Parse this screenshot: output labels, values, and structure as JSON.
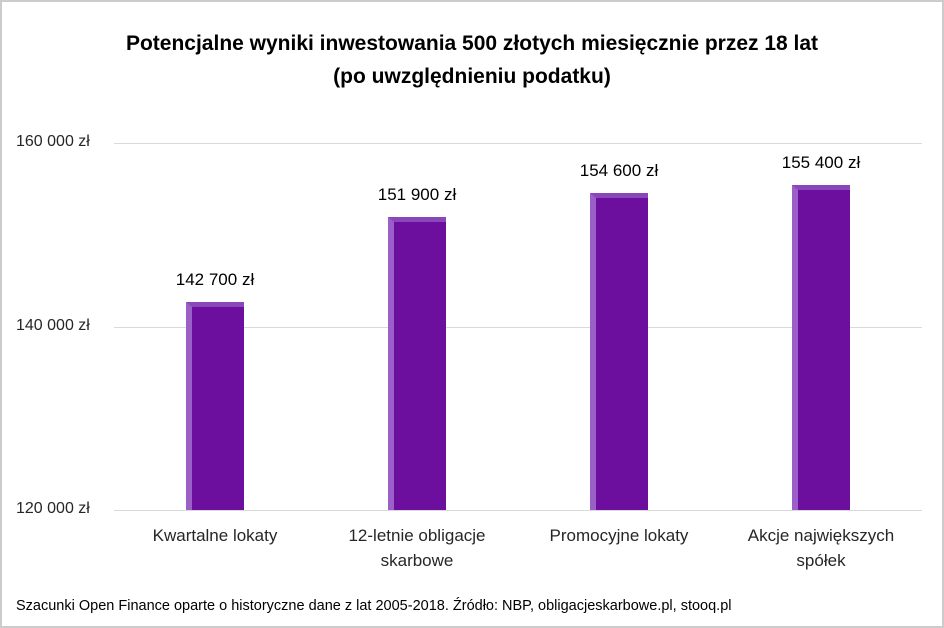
{
  "header": {
    "line1": "Potencjalne wyniki inwestowania 500 złotych miesięcznie przez 18 lat",
    "line2": "(po uwzględnieniu podatku)"
  },
  "footer": {
    "text": "Szacunki Open Finance oparte o historyczne dane z lat 2005-2018. Źródło: NBP, obligacjeskarbowe.pl, stooq.pl"
  },
  "chart_data": {
    "type": "bar",
    "title": "Potencjalne wyniki inwestowania 500 złotych miesięcznie przez 18 lat (po uwzględnieniu podatku)",
    "categories": [
      "Kwartalne lokaty",
      "12-letnie obligacje skarbowe",
      "Promocyjne lokaty",
      "Akcje największych spółek"
    ],
    "values": [
      142700,
      151900,
      154600,
      155400
    ],
    "value_labels": [
      "142 700 zł",
      "151 900 zł",
      "154 600 zł",
      "155 400 zł"
    ],
    "xlabel": "",
    "ylabel": "",
    "ylim": [
      120000,
      160000
    ],
    "yticks": [
      {
        "value": 160000,
        "label": "160 000 zł"
      },
      {
        "value": 140000,
        "label": "140 000 zł"
      },
      {
        "value": 120000,
        "label": "120 000 zł"
      }
    ],
    "grid": true,
    "legend": "none",
    "bar_color": "#6d0f9e",
    "bar_highlight_left": "#9b5fc8",
    "bar_highlight_top": "#8a46bb"
  }
}
